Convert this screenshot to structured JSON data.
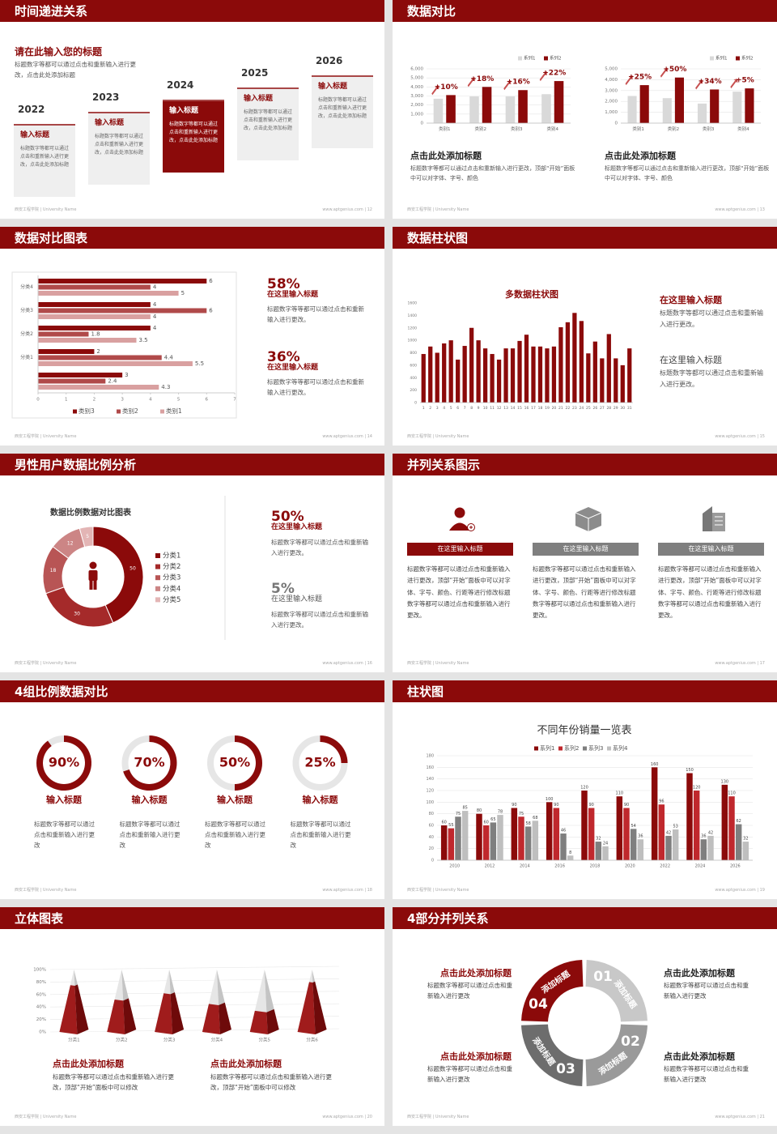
{
  "slides": [
    {
      "title": "时间递进关系",
      "footer_left": "西安工程学院 | University Name",
      "footer_right": "www.aptgenius.com | 12",
      "heading": "请在此输入您的标题",
      "text": "标题数字等都可以通过点击和重新输入进行更改，点击此处添加标题",
      "items": [
        {
          "year": "2022",
          "title": "输入标题",
          "text": "标题数字等都可以通过点击和重新输入进行更改，点击此处添加标题"
        },
        {
          "year": "2023",
          "title": "输入标题",
          "text": "标题数字等都可以通过点击和重新输入进行更改，点击此处添加标题"
        },
        {
          "year": "2024",
          "title": "输入标题",
          "text": "标题数字等都可以通过点击和重新输入进行更改，点击此处添加标题"
        },
        {
          "year": "2025",
          "title": "输入标题",
          "text": "标题数字等都可以通过点击和重新输入进行更改，点击此处添加标题"
        },
        {
          "year": "2026",
          "title": "输入标题",
          "text": "标题数字等都可以通过点击和重新输入进行更改，点击此处添加标题"
        }
      ]
    },
    {
      "title": "数据对比",
      "footer_left": "西安工程学院 | University Name",
      "footer_right": "www.aptgenius.com | 13",
      "blocks": [
        {
          "heading": "点击此处添加标题",
          "text": "标题数字等都可以通过点击和重新输入进行更改，顶部“开始”面板中可以对字体、字号、颜色"
        },
        {
          "heading": "点击此处添加标题",
          "text": "标题数字等都可以通过点击和重新输入进行更改，顶部“开始”面板中可以对字体、字号、颜色"
        }
      ]
    },
    {
      "title": "数据对比图表",
      "footer_left": "西安工程学院 | University Name",
      "footer_right": "www.aptgenius.com | 14",
      "notes": [
        {
          "value": "58%",
          "heading": "在这里输入标题",
          "text": "标题数字等等都可以通过点击和重新输入进行更改。"
        },
        {
          "value": "36%",
          "heading": "在这里输入标题",
          "text": "标题数字等等都可以通过点击和重新输入进行更改。"
        }
      ]
    },
    {
      "title": "数据柱状图",
      "footer_left": "西安工程学院 | University Name",
      "footer_right": "www.aptgenius.com | 15",
      "notes": [
        {
          "heading": "在这里输入标题",
          "text": "标题数字等都可以通过点击和重新输入进行更改。"
        },
        {
          "heading": "在这里输入标题",
          "text": "标题数字等都可以通过点击和重新输入进行更改。"
        }
      ]
    },
    {
      "title": "男性用户数据比例分析",
      "footer_left": "西安工程学院 | University Name",
      "footer_right": "www.aptgenius.com | 16",
      "notes": [
        {
          "value": "50%",
          "heading": "在这里输入标题",
          "text": "标题数字等都可以通过点击和重新输入进行更改。"
        },
        {
          "value": "5%",
          "heading": "在这里输入标题",
          "text": "标题数字等都可以通过点击和重新输入进行更改。"
        }
      ]
    },
    {
      "title": "并列关系图示",
      "footer_left": "西安工程学院 | University Name",
      "footer_right": "www.aptgenius.com | 17",
      "columns": [
        {
          "heading": "在这里输入标题",
          "text": "标题数字等都可以通过点击和重新输入进行更改，顶部“开始”面板中可以对字体、字号、颜色、行距等进行修改标题数字等都可以通过点击和重新输入进行更改。"
        },
        {
          "heading": "在这里输入标题",
          "text": "标题数字等都可以通过点击和重新输入进行更改，顶部“开始”面板中可以对字体、字号、颜色、行距等进行修改标题数字等都可以通过点击和重新输入进行更改。"
        },
        {
          "heading": "在这里输入标题",
          "text": "标题数字等都可以通过点击和重新输入进行更改，顶部“开始”面板中可以对字体、字号、颜色、行距等进行修改标题数字等都可以通过点击和重新输入进行更改。"
        }
      ]
    },
    {
      "title": "4组比例数据对比",
      "footer_left": "西安工程学院 | University Name",
      "footer_right": "www.aptgenius.com | 18",
      "items": [
        {
          "heading": "输入标题",
          "text": "标题数字等都可以通过点击和重新输入进行更改"
        },
        {
          "heading": "输入标题",
          "text": "标题数字等都可以通过点击和重新输入进行更改"
        },
        {
          "heading": "输入标题",
          "text": "标题数字等都可以通过点击和重新输入进行更改"
        },
        {
          "heading": "输入标题",
          "text": "标题数字等都可以通过点击和重新输入进行更改"
        }
      ]
    },
    {
      "title": "柱状图",
      "footer_left": "西安工程学院 | University Name",
      "footer_right": "www.aptgenius.com | 19"
    },
    {
      "title": "立体图表",
      "footer_left": "西安工程学院 | University Name",
      "footer_right": "www.aptgenius.com | 20",
      "blocks": [
        {
          "heading": "点击此处添加标题",
          "text": "标题数字等都可以通过点击和重新输入进行更改，顶部“开始”面板中可以修改"
        },
        {
          "heading": "点击此处添加标题",
          "text": "标题数字等都可以通过点击和重新输入进行更改，顶部“开始”面板中可以修改"
        }
      ]
    },
    {
      "title": "4部分并列关系",
      "footer_left": "西安工程学院 | University Name",
      "footer_right": "www.aptgenius.com | 21",
      "segments": [
        {
          "number": "01",
          "label": "添加标题"
        },
        {
          "number": "02",
          "label": "添加标题"
        },
        {
          "number": "03",
          "label": "添加标题"
        },
        {
          "number": "04",
          "label": "添加标题"
        }
      ],
      "notes": [
        {
          "heading": "点击此处添加标题",
          "text": "标题数字等都可以通过点击和重新输入进行更改"
        },
        {
          "heading": "点击此处添加标题",
          "text": "标题数字等都可以通过点击和重新输入进行更改"
        },
        {
          "heading": "点击此处添加标题",
          "text": "标题数字等都可以通过点击和重新输入进行更改"
        },
        {
          "heading": "点击此处添加标题",
          "text": "标题数字等都可以通过点击和重新输入进行更改"
        }
      ]
    }
  ],
  "chart_data": [
    {
      "type": "bar",
      "categories": [
        "类别1",
        "类别2",
        "类别3",
        "类别4"
      ],
      "series": [
        {
          "name": "系列1",
          "color": "#d9d9d9",
          "values": [
            2700,
            2950,
            2950,
            3200
          ]
        },
        {
          "name": "系列2",
          "color": "#8b0a0a",
          "values": [
            3100,
            4000,
            3650,
            4650
          ]
        }
      ],
      "annotations": [
        "+10%",
        "+18%",
        "+16%",
        "+22%"
      ],
      "ylim": [
        0,
        6000
      ],
      "yticks": [
        0,
        {
          "value": 1000,
          "label": "1,000"
        },
        {
          "value": 2000,
          "label": "2,000"
        },
        {
          "value": 3000,
          "label": "3,000"
        },
        {
          "value": 4000,
          "label": "4,000"
        },
        {
          "value": 5000,
          "label": "5,000"
        },
        {
          "value": 6000,
          "label": "6,000"
        }
      ],
      "grid": true
    },
    {
      "type": "bar",
      "categories": [
        "类别1",
        "类别2",
        "类别3",
        "类别4"
      ],
      "series": [
        {
          "name": "系列1",
          "color": "#d9d9d9",
          "values": [
            2500,
            2300,
            1800,
            2900
          ]
        },
        {
          "name": "系列2",
          "color": "#8b0a0a",
          "values": [
            3500,
            4200,
            3100,
            3200
          ]
        }
      ],
      "annotations": [
        "+25%",
        "+50%",
        "+34%",
        "+5%"
      ],
      "ylim": [
        0,
        5000
      ],
      "yticks": [
        0,
        {
          "value": 1000,
          "label": "1,000"
        },
        {
          "value": 2000,
          "label": "2,000"
        },
        {
          "value": 3000,
          "label": "3,000"
        },
        {
          "value": 4000,
          "label": "4,000"
        },
        {
          "value": 5000,
          "label": "5,000"
        }
      ],
      "grid": true
    },
    {
      "type": "bar",
      "orientation": "horizontal",
      "categories": [
        null,
        "分类1",
        "分类2",
        "分类3",
        "分类4"
      ],
      "series": [
        {
          "name": "类别3",
          "color": "#8b0a0a",
          "values": [
            3,
            2,
            4,
            4,
            6
          ]
        },
        {
          "name": "类别2",
          "color": "#b04a4a",
          "values": [
            2.4,
            4.4,
            1.8,
            6,
            4
          ]
        },
        {
          "name": "类别1",
          "color": "#d9a0a0",
          "values": [
            4.3,
            5.5,
            3.5,
            4,
            5
          ]
        }
      ],
      "xlim": [
        0,
        7
      ],
      "xticks": [
        0,
        1,
        2,
        3,
        4,
        5,
        6,
        7
      ],
      "data_labels": true
    },
    {
      "type": "bar",
      "title": "多数据柱状图",
      "categories": [
        "1",
        "2",
        "3",
        "4",
        "5",
        "6",
        "7",
        "8",
        "9",
        "10",
        "11",
        "12",
        "13",
        "14",
        "15",
        "16",
        "17",
        "18",
        "19",
        "20",
        "21",
        "22",
        "23",
        "24",
        "25",
        "26",
        "27",
        "28",
        "29",
        "30",
        "31"
      ],
      "series": [
        {
          "color": "#8b0a0a",
          "values": [
            780,
            900,
            800,
            950,
            1000,
            690,
            910,
            1200,
            1000,
            870,
            780,
            690,
            870,
            870,
            990,
            1090,
            900,
            900,
            870,
            900,
            1210,
            1290,
            1440,
            1310,
            790,
            980,
            710,
            1100,
            710,
            600,
            870
          ]
        }
      ],
      "ylim": [
        0,
        1600
      ],
      "yticks": [
        0,
        200,
        400,
        600,
        800,
        1000,
        1200,
        1400,
        1600
      ],
      "grid": false
    },
    {
      "type": "donut",
      "title": "数据比例数据对比图表",
      "categories": [
        "分类1",
        "分类2",
        "分类3",
        "分类4",
        "分类5"
      ],
      "values": [
        50,
        30,
        18,
        12,
        5
      ],
      "colors": [
        "#8b0a0a",
        "#a52a2a",
        "#b85555",
        "#cc8585",
        "#e3b5b5"
      ]
    },
    {
      "type": "ring",
      "values": [
        90,
        70,
        50,
        25
      ],
      "value_labels": [
        "90%",
        "70%",
        "50%",
        "25%"
      ],
      "ylim": [
        0,
        100
      ],
      "color": "#8b0a0a"
    },
    {
      "type": "bar",
      "title": "不同年份销量一览表",
      "categories": [
        "2010",
        "2012",
        "2014",
        "2016",
        "2018",
        "2020",
        "2022",
        "2024",
        "2026"
      ],
      "series": [
        {
          "name": "系列1",
          "color": "#8b0a0a",
          "values": [
            60,
            80,
            90,
            100,
            120,
            110,
            160,
            150,
            130
          ]
        },
        {
          "name": "系列2",
          "color": "#c0282d",
          "values": [
            55,
            60,
            75,
            90,
            90,
            90,
            96,
            120,
            110
          ]
        },
        {
          "name": "系列3",
          "color": "#7f7f7f",
          "values": [
            75,
            65,
            58,
            46,
            32,
            54,
            42,
            36,
            62
          ]
        },
        {
          "name": "系列4",
          "color": "#bfbfbf",
          "values": [
            85,
            78,
            68,
            8,
            24,
            36,
            53,
            42,
            32
          ]
        }
      ],
      "ylim": [
        0,
        180
      ],
      "yticks": [
        0,
        20,
        40,
        60,
        80,
        100,
        120,
        140,
        160,
        180
      ],
      "grid": true,
      "data_labels": true
    },
    {
      "type": "pyramid",
      "categories": [
        "分类1",
        "分类2",
        "分类3",
        "分类4",
        "分类5",
        "分类6"
      ],
      "values": [
        75,
        52,
        62,
        45,
        34,
        80
      ],
      "color": "#a01c1c",
      "ylim": [
        0,
        100
      ],
      "yticks": [
        {
          "value": 0,
          "label": "0%"
        },
        {
          "value": 20,
          "label": "20%"
        },
        {
          "value": 40,
          "label": "40%"
        },
        {
          "value": 60,
          "label": "60%"
        },
        {
          "value": 80,
          "label": "80%"
        },
        {
          "value": 100,
          "label": "100%"
        }
      ]
    }
  ]
}
